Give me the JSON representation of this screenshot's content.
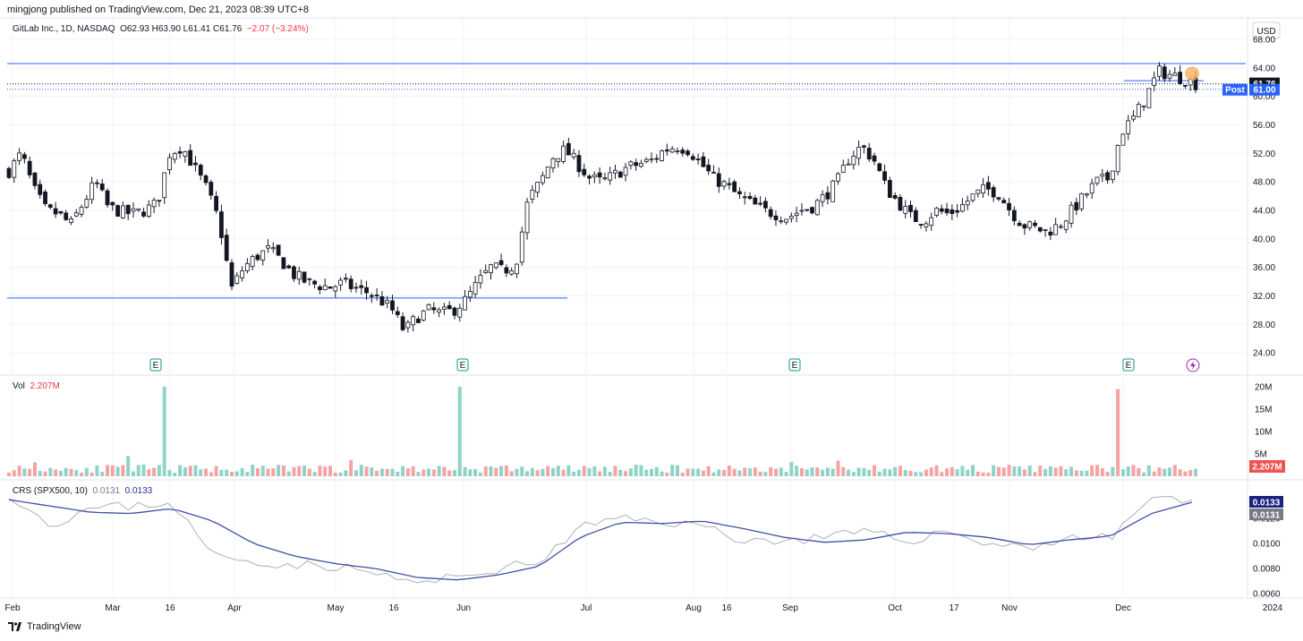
{
  "header": {
    "published": "mingjong published on TradingView.com, Dec 21, 2023 08:39 UTC+8",
    "symbol": "GitLab Inc., 1D, NASDAQ",
    "ohlc": "O62.93 H63.90 L61.41 C61.76",
    "change": "−2.07 (−3.24%)"
  },
  "currency": "USD",
  "footer": {
    "brand": "TradingView"
  },
  "colors": {
    "up": "#26a69a",
    "down": "#ef5350",
    "candle": "#131722",
    "line_blue": "#2962ff",
    "crs_ma": "#3f4fa8",
    "crs_raw": "#b0b0b0"
  },
  "chart_data": [
    {
      "type": "candlestick",
      "title": "GitLab Inc., 1D, NASDAQ",
      "ylim": [
        22,
        68
      ],
      "y_ticks": [
        "68.00",
        "64.00",
        "60.00",
        "56.00",
        "52.00",
        "48.00",
        "44.00",
        "40.00",
        "36.00",
        "32.00",
        "28.00",
        "24.00"
      ],
      "x_ticks": [
        "Feb",
        "Mar",
        "16",
        "Apr",
        "May",
        "16",
        "Jun",
        "Jul",
        "Aug",
        "16",
        "Sep",
        "Oct",
        "17",
        "Nov",
        "Dec",
        "2024"
      ],
      "last_price": "61.76",
      "post_label": "Post",
      "post_price": "61.00",
      "horizontal_levels": [
        64.6,
        31.7,
        62.2
      ],
      "earnings_markers": [
        "E",
        "E",
        "E",
        "E"
      ],
      "close_path": [
        49.5,
        52,
        47,
        44,
        43.5,
        42,
        45,
        48,
        44.5,
        43.8,
        43.5,
        44,
        45,
        52,
        53,
        50,
        47,
        42.5,
        33,
        36,
        37.5,
        38.5,
        37,
        35,
        34,
        33.5,
        33.2,
        33.8,
        33,
        32.5,
        31.5,
        30,
        27,
        29,
        30,
        29.5,
        30,
        31.5,
        34,
        36,
        35.5,
        36.5,
        45.5,
        48,
        51.5,
        52.5,
        50.5,
        48.5,
        48,
        49,
        50,
        50.5,
        51,
        52.5,
        53,
        52.5,
        50.5,
        48.5,
        47.5,
        46,
        45,
        44,
        43.5,
        43,
        44,
        44.5,
        46,
        48,
        51.5,
        53,
        51,
        47,
        45,
        43,
        42.5,
        44,
        43.5,
        44.5,
        46,
        47,
        46.5,
        44,
        42,
        41.5,
        41,
        42,
        44,
        46,
        48,
        48.5,
        55,
        57,
        60,
        63.5,
        63,
        62.5,
        61.76
      ]
    },
    {
      "type": "bar",
      "title": "Vol",
      "last_value": "2.207M",
      "y_ticks": [
        "20M",
        "15M",
        "10M",
        "5M"
      ],
      "ylim": [
        0,
        21
      ],
      "spikes": [
        {
          "at": 0.02,
          "value": 3.1,
          "up": false
        },
        {
          "at": 0.1,
          "value": 4.5,
          "up": true
        },
        {
          "at": 0.13,
          "value": 20,
          "up": true
        },
        {
          "at": 0.29,
          "value": 3.6,
          "up": false
        },
        {
          "at": 0.38,
          "value": 20,
          "up": true
        },
        {
          "at": 0.66,
          "value": 3.2,
          "up": true
        },
        {
          "at": 0.7,
          "value": 3.5,
          "up": false
        },
        {
          "at": 0.935,
          "value": 19.5,
          "up": false
        }
      ]
    },
    {
      "type": "line",
      "title": "CRS (SPX500, 10)",
      "label": "CRS (SPX500, 10)",
      "values_text": [
        "0.0131",
        "0.0133"
      ],
      "ylim": [
        0.0058,
        0.0148
      ],
      "y_ticks": [
        "0.0120",
        "0.0100",
        "0.0080",
        "0.0060"
      ],
      "last_ma": "0.0133",
      "last_raw": "0.0131",
      "ma_path": [
        0.0135,
        0.013,
        0.0125,
        0.0124,
        0.0128,
        0.0118,
        0.01,
        0.009,
        0.0084,
        0.008,
        0.0073,
        0.0071,
        0.0075,
        0.0082,
        0.0105,
        0.0117,
        0.0116,
        0.0118,
        0.0112,
        0.0105,
        0.0101,
        0.0103,
        0.0109,
        0.0108,
        0.0105,
        0.0099,
        0.0103,
        0.0106,
        0.0124,
        0.0133
      ],
      "raw_path": [
        0.014,
        0.0115,
        0.0128,
        0.013,
        0.0133,
        0.009,
        0.0086,
        0.0083,
        0.0082,
        0.0076,
        0.0068,
        0.0073,
        0.008,
        0.0085,
        0.0113,
        0.012,
        0.0118,
        0.0114,
        0.0103,
        0.0102,
        0.0105,
        0.0109,
        0.0102,
        0.011,
        0.01,
        0.0097,
        0.0105,
        0.0104,
        0.0138,
        0.0131
      ]
    }
  ]
}
